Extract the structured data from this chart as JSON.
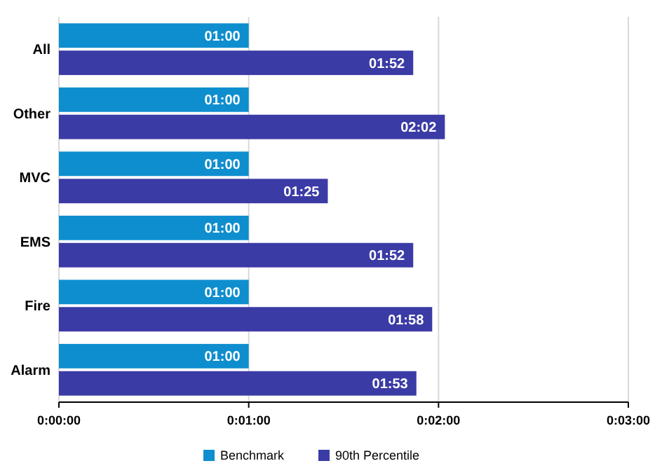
{
  "chart_data": {
    "type": "bar",
    "orientation": "horizontal",
    "categories": [
      "All",
      "Other",
      "MVC",
      "EMS",
      "Fire",
      "Alarm"
    ],
    "series": [
      {
        "name": "Benchmark",
        "color": "#0e8ecf",
        "values": [
          60,
          60,
          60,
          60,
          60,
          60
        ],
        "value_labels": [
          "01:00",
          "01:00",
          "01:00",
          "01:00",
          "01:00",
          "01:00"
        ]
      },
      {
        "name": "90th Percentile",
        "color": "#3b3ba6",
        "values": [
          112,
          122,
          85,
          112,
          118,
          113
        ],
        "value_labels": [
          "01:52",
          "02:02",
          "01:25",
          "01:52",
          "01:58",
          "01:53"
        ]
      }
    ],
    "xlim": [
      0,
      180
    ],
    "xticks": [
      {
        "value": 0,
        "label": "0:00:00"
      },
      {
        "value": 60,
        "label": "0:01:00"
      },
      {
        "value": 120,
        "label": "0:02:00"
      },
      {
        "value": 180,
        "label": "0:03:00"
      }
    ],
    "grid": "x",
    "legend": "bottom"
  }
}
